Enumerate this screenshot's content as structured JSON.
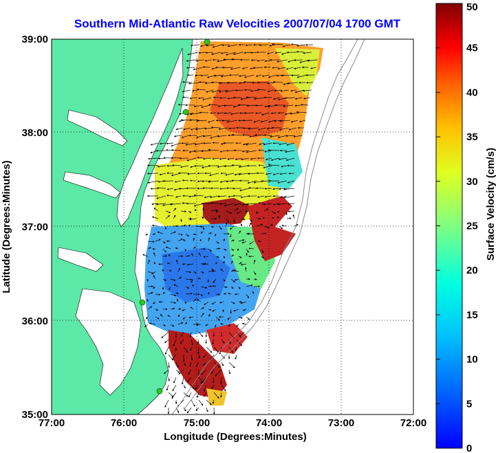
{
  "title": "Southern Mid-Atlantic Raw Velocities 2007/07/04 1700 GMT",
  "axes": {
    "xlabel": "Longitude (Degrees:Minutes)",
    "ylabel": "Latitude (Degrees:Minutes)",
    "xticks": [
      "77:00",
      "76:00",
      "75:00",
      "74:00",
      "73:00",
      "72:00"
    ],
    "yticks": [
      "39:00",
      "38:00",
      "37:00",
      "36:00",
      "35:00"
    ],
    "xrange": [
      -77,
      -72
    ],
    "yrange": [
      35,
      39
    ]
  },
  "colorbar": {
    "label": "Surface Velocity (cm/s)",
    "ticks": [
      "50",
      "45",
      "40",
      "35",
      "30",
      "25",
      "20",
      "15",
      "10",
      "5",
      "0"
    ],
    "range": [
      0,
      50
    ],
    "colormap": "jet"
  },
  "colors": {
    "land": "#5ce8a6",
    "ocean": "#ffffff",
    "title": "#0000ff",
    "station": "#22cc22"
  },
  "chart_data": {
    "type": "heatmap",
    "description_values": "surface current speed field (cm/s) with velocity vectors",
    "regions": [
      {
        "zone": "northern shelf 38:00-39:00",
        "speed_cm_s": 35
      },
      {
        "zone": "central shelf 37:10-37:50",
        "speed_cm_s": 28
      },
      {
        "zone": "eddy near 37:05N 74:40W",
        "speed_cm_s": 45
      },
      {
        "zone": "southern central 36:00-36:50",
        "speed_cm_s": 10
      },
      {
        "zone": "offshore edge 36:20-37:00 74:10W",
        "speed_cm_s": 48
      },
      {
        "zone": "Hatteras 35:15-35:45",
        "speed_cm_s": 47
      }
    ],
    "stations": [
      {
        "name": "station-north",
        "lon": -74.9,
        "lat": 39.0
      },
      {
        "name": "station-mid",
        "lon": -75.15,
        "lat": 38.22
      },
      {
        "name": "station-south",
        "lon": -75.75,
        "lat": 36.17
      },
      {
        "name": "station-hatteras",
        "lon": -75.5,
        "lat": 35.27
      }
    ]
  }
}
